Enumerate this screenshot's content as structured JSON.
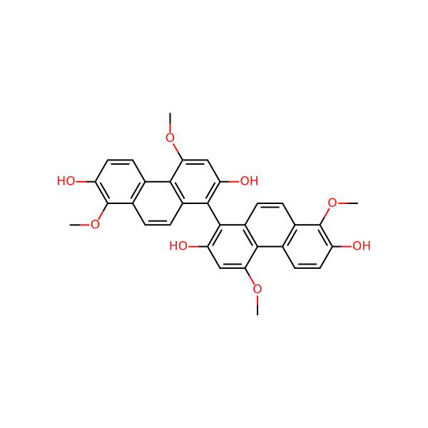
{
  "atom_labels": [
    "O",
    "OH",
    "HO",
    "O",
    "O",
    "HO",
    "OH",
    "O"
  ]
}
